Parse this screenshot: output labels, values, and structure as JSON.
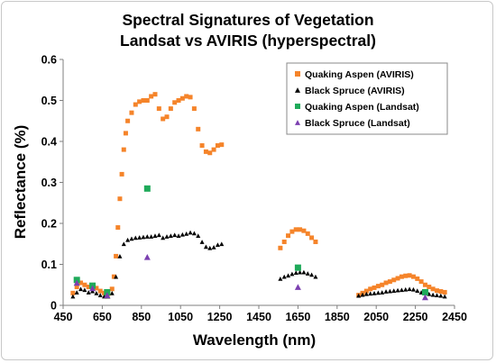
{
  "chart_data": {
    "type": "scatter",
    "title": "Spectral Signatures of Vegetation",
    "subtitle": "Landsat vs AVIRIS (hyperspectral)",
    "xlabel": "Wavelength (nm)",
    "ylabel": "Reflectance (%)",
    "xlim": [
      450,
      2450
    ],
    "ylim": [
      0,
      0.6
    ],
    "xticks": [
      450,
      650,
      850,
      1050,
      1250,
      1450,
      1650,
      1850,
      2050,
      2250,
      2450
    ],
    "yticks": [
      0,
      0.1,
      0.2,
      0.3,
      0.4,
      0.5,
      0.6
    ],
    "grid": false,
    "legend_position": "top-right",
    "series": [
      {
        "name": "Quaking Aspen (AVIRIS)",
        "marker": "square",
        "color": "#f5842a",
        "x": [
          500,
          520,
          540,
          560,
          580,
          600,
          620,
          640,
          660,
          680,
          700,
          710,
          720,
          730,
          740,
          750,
          760,
          770,
          780,
          800,
          820,
          840,
          860,
          880,
          900,
          920,
          940,
          960,
          980,
          1000,
          1020,
          1040,
          1060,
          1080,
          1100,
          1120,
          1140,
          1160,
          1180,
          1200,
          1220,
          1240,
          1260,
          1560,
          1580,
          1600,
          1620,
          1640,
          1660,
          1680,
          1700,
          1720,
          1740,
          1960,
          1980,
          2000,
          2020,
          2040,
          2060,
          2080,
          2100,
          2120,
          2140,
          2160,
          2180,
          2200,
          2220,
          2240,
          2260,
          2280,
          2300,
          2320,
          2340,
          2360,
          2380,
          2400
        ],
        "y": [
          0.03,
          0.045,
          0.055,
          0.05,
          0.045,
          0.048,
          0.042,
          0.035,
          0.03,
          0.028,
          0.04,
          0.07,
          0.12,
          0.19,
          0.26,
          0.32,
          0.38,
          0.42,
          0.45,
          0.47,
          0.49,
          0.497,
          0.5,
          0.5,
          0.51,
          0.515,
          0.48,
          0.455,
          0.46,
          0.48,
          0.495,
          0.5,
          0.505,
          0.51,
          0.508,
          0.48,
          0.43,
          0.39,
          0.375,
          0.372,
          0.38,
          0.39,
          0.392,
          0.14,
          0.155,
          0.17,
          0.18,
          0.185,
          0.185,
          0.182,
          0.175,
          0.165,
          0.155,
          0.025,
          0.03,
          0.035,
          0.04,
          0.043,
          0.047,
          0.05,
          0.055,
          0.058,
          0.062,
          0.066,
          0.07,
          0.072,
          0.073,
          0.07,
          0.065,
          0.058,
          0.05,
          0.045,
          0.04,
          0.036,
          0.034,
          0.032
        ]
      },
      {
        "name": "Black Spruce (AVIRIS)",
        "marker": "triangle",
        "color": "#000000",
        "x": [
          500,
          520,
          540,
          560,
          580,
          600,
          620,
          640,
          660,
          680,
          700,
          720,
          740,
          760,
          780,
          800,
          820,
          840,
          860,
          880,
          900,
          920,
          940,
          960,
          980,
          1000,
          1020,
          1040,
          1060,
          1080,
          1100,
          1120,
          1140,
          1160,
          1180,
          1200,
          1220,
          1240,
          1260,
          1560,
          1580,
          1600,
          1620,
          1640,
          1660,
          1680,
          1700,
          1720,
          1740,
          1960,
          1980,
          2000,
          2020,
          2040,
          2060,
          2080,
          2100,
          2120,
          2140,
          2160,
          2180,
          2200,
          2220,
          2240,
          2260,
          2280,
          2300,
          2320,
          2340,
          2360,
          2380,
          2400
        ],
        "y": [
          0.022,
          0.032,
          0.04,
          0.038,
          0.032,
          0.035,
          0.03,
          0.025,
          0.022,
          0.022,
          0.03,
          0.07,
          0.12,
          0.15,
          0.16,
          0.163,
          0.165,
          0.166,
          0.167,
          0.168,
          0.168,
          0.17,
          0.172,
          0.165,
          0.168,
          0.17,
          0.172,
          0.17,
          0.173,
          0.175,
          0.178,
          0.176,
          0.17,
          0.155,
          0.143,
          0.14,
          0.142,
          0.148,
          0.15,
          0.065,
          0.07,
          0.073,
          0.077,
          0.08,
          0.081,
          0.081,
          0.078,
          0.075,
          0.07,
          0.024,
          0.026,
          0.028,
          0.029,
          0.03,
          0.031,
          0.032,
          0.034,
          0.035,
          0.036,
          0.037,
          0.038,
          0.039,
          0.04,
          0.039,
          0.036,
          0.032,
          0.03,
          0.028,
          0.026,
          0.025,
          0.024,
          0.022
        ]
      },
      {
        "name": "Quaking Aspen (Landsat)",
        "marker": "square",
        "color": "#1faa5a",
        "x": [
          520,
          600,
          675,
          880,
          1650,
          2300
        ],
        "y": [
          0.062,
          0.048,
          0.032,
          0.285,
          0.092,
          0.032
        ]
      },
      {
        "name": "Black Spruce (Landsat)",
        "marker": "triangle",
        "color": "#7b3fb0",
        "x": [
          520,
          600,
          675,
          880,
          1650,
          2300
        ],
        "y": [
          0.055,
          0.042,
          0.025,
          0.118,
          0.045,
          0.02
        ]
      }
    ]
  }
}
